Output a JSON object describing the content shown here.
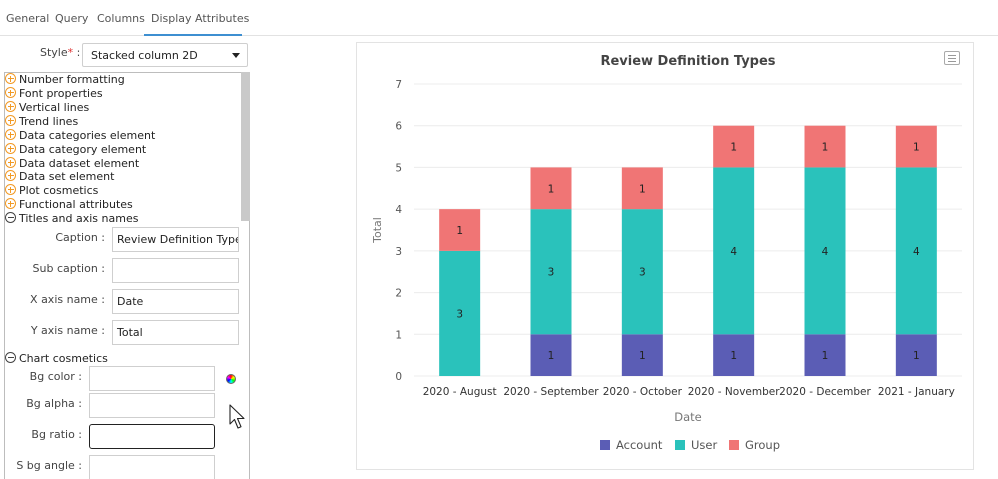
{
  "tabs": [
    {
      "label": "General"
    },
    {
      "label": "Query"
    },
    {
      "label": "Columns"
    },
    {
      "label": "Display Attributes"
    }
  ],
  "style": {
    "label": "Style",
    "required_mark": "*",
    "colon": " :",
    "value": "Stacked column 2D"
  },
  "tree": {
    "sections": [
      {
        "label": "Number formatting",
        "state": "collapsed"
      },
      {
        "label": "Font properties",
        "state": "collapsed"
      },
      {
        "label": "Vertical lines",
        "state": "collapsed"
      },
      {
        "label": "Trend lines",
        "state": "collapsed"
      },
      {
        "label": "Data categories element",
        "state": "collapsed"
      },
      {
        "label": "Data category element",
        "state": "collapsed"
      },
      {
        "label": "Data dataset element",
        "state": "collapsed"
      },
      {
        "label": "Data set element",
        "state": "collapsed"
      },
      {
        "label": "Plot cosmetics",
        "state": "collapsed"
      },
      {
        "label": "Functional attributes",
        "state": "collapsed"
      },
      {
        "label": "Titles and axis names",
        "state": "expanded"
      },
      {
        "label": "Chart cosmetics",
        "state": "expanded"
      }
    ],
    "titles_fields": [
      {
        "label": "Caption :",
        "value": "Review Definition Types"
      },
      {
        "label": "Sub caption :",
        "value": ""
      },
      {
        "label": "X axis name :",
        "value": "Date"
      },
      {
        "label": "Y axis name :",
        "value": "Total"
      }
    ],
    "cosmetics_fields": [
      {
        "label": "Bg color :",
        "value": ""
      },
      {
        "label": "Bg alpha :",
        "value": ""
      },
      {
        "label": "Bg ratio :",
        "value": ""
      },
      {
        "label": "S bg angle :",
        "value": ""
      }
    ]
  },
  "colors": {
    "account": "#5b5db5",
    "user": "#2ac2bb",
    "group": "#f07575",
    "accent": "#3d8fd1"
  },
  "chart_data": {
    "type": "bar",
    "stacked": true,
    "title": "Review Definition Types",
    "xlabel": "Date",
    "ylabel": "Total",
    "ylim": [
      0,
      7
    ],
    "yticks": [
      0,
      1,
      2,
      3,
      4,
      5,
      6,
      7
    ],
    "grid": true,
    "legend_position": "bottom-center",
    "categories": [
      "2020 - August",
      "2020 - September",
      "2020 - October",
      "2020 - November",
      "2020 - December",
      "2021 - January"
    ],
    "series": [
      {
        "name": "Account",
        "values": [
          0,
          1,
          1,
          1,
          1,
          1
        ]
      },
      {
        "name": "User",
        "values": [
          3,
          3,
          3,
          4,
          4,
          4
        ]
      },
      {
        "name": "Group",
        "values": [
          1,
          1,
          1,
          1,
          1,
          1
        ]
      }
    ]
  }
}
